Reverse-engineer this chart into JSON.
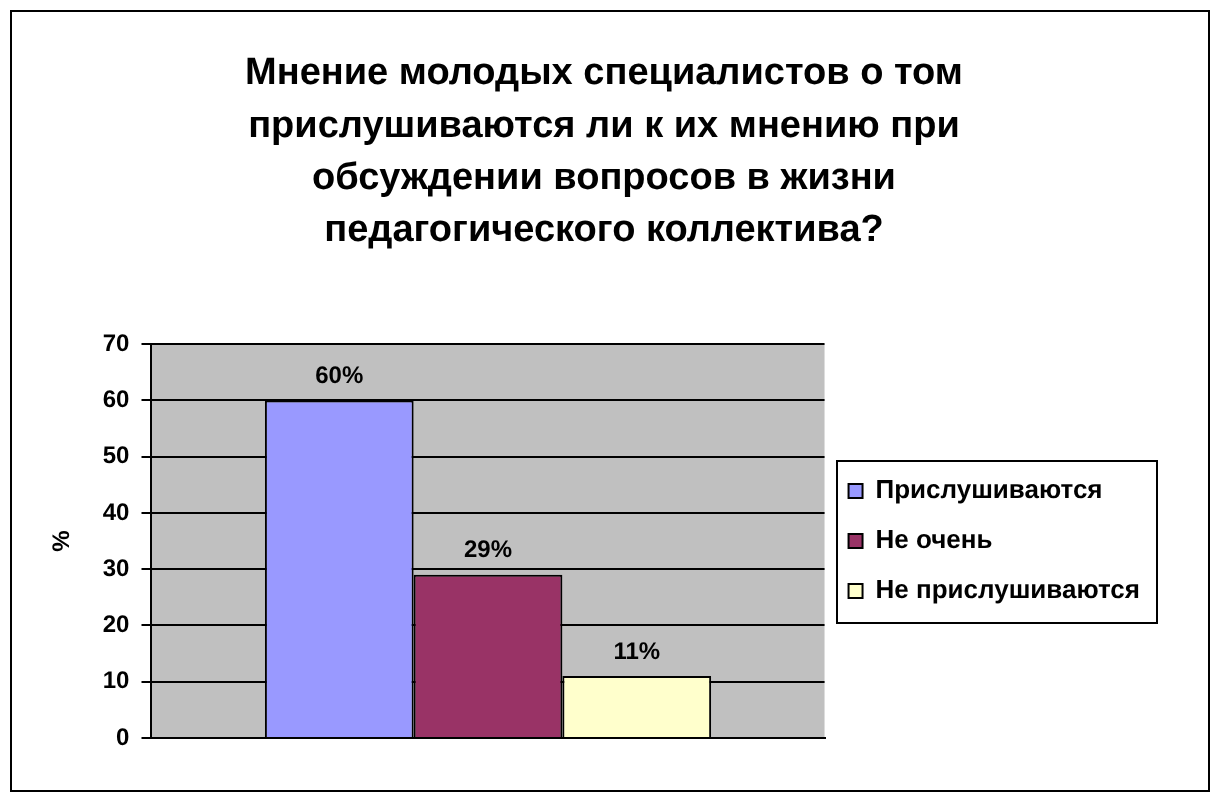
{
  "chart_data": {
    "type": "bar",
    "title": "Мнение молодых специалистов о том прислушиваются ли к их мнению при обсуждении вопросов в жизни педагогического коллектива?",
    "ylabel": "%",
    "categories": [
      null
    ],
    "series": [
      {
        "name": "Прислушиваются",
        "color": "#9999ff",
        "values": [
          60
        ],
        "value_labels": [
          "60%"
        ]
      },
      {
        "name": "Не очень",
        "color": "#993366",
        "values": [
          29
        ],
        "value_labels": [
          "29%"
        ]
      },
      {
        "name": "Не прислушиваются",
        "color": "#ffffcc",
        "values": [
          11
        ],
        "value_labels": [
          "11%"
        ]
      }
    ],
    "ylim": [
      0,
      70
    ],
    "yticks": [
      0,
      10,
      20,
      30,
      40,
      50,
      60,
      70
    ],
    "grid": "y",
    "legend": "right",
    "tick_labels": "y"
  }
}
